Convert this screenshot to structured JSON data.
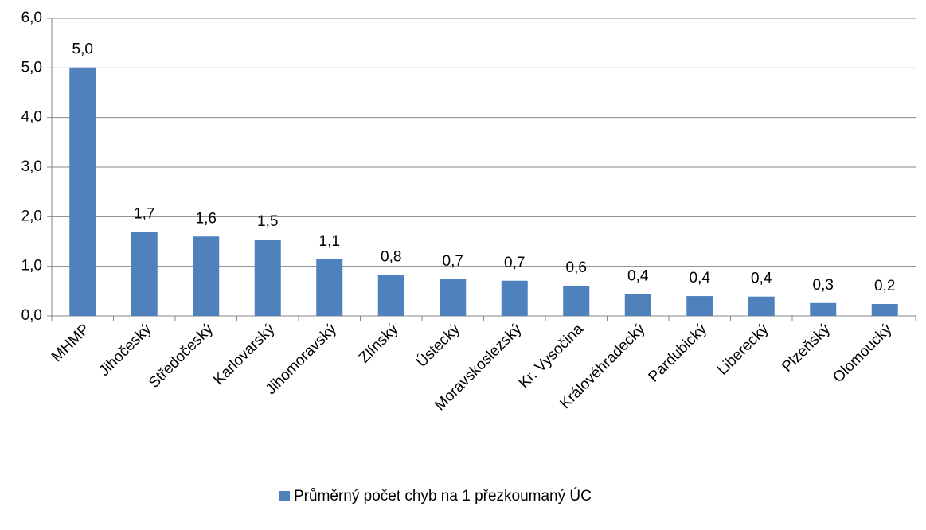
{
  "chart_data": {
    "type": "bar",
    "categories": [
      "MHMP",
      "Jihočeský",
      "Středočeský",
      "Karlovarský",
      "Jihomoravský",
      "Zlínský",
      "Ústecký",
      "Moravskoslezský",
      "Kr. Vysočina",
      "Královéhradecký",
      "Pardubický",
      "Liberecký",
      "Plzeňský",
      "Olomoucký"
    ],
    "series": [
      {
        "name": "Průměrný počet chyb na 1 přezkoumaný ÚC",
        "color": "#4f81bd",
        "values": [
          5.01,
          1.69,
          1.6,
          1.54,
          1.14,
          0.83,
          0.74,
          0.71,
          0.61,
          0.44,
          0.4,
          0.39,
          0.26,
          0.24
        ],
        "value_labels": [
          "5,0",
          "1,7",
          "1,6",
          "1,5",
          "1,1",
          "0,8",
          "0,7",
          "0,7",
          "0,6",
          "0,4",
          "0,4",
          "0,4",
          "0,3",
          "0,2"
        ]
      }
    ],
    "ylim": [
      0,
      6
    ],
    "yticks": [
      {
        "value": 0,
        "label": "0,0"
      },
      {
        "value": 1,
        "label": "1,0"
      },
      {
        "value": 2,
        "label": "2,0"
      },
      {
        "value": 3,
        "label": "3,0"
      },
      {
        "value": 4,
        "label": "4,0"
      },
      {
        "value": 5,
        "label": "5,0"
      },
      {
        "value": 6,
        "label": "6,0"
      }
    ],
    "grid": true,
    "legend": "bottom"
  }
}
